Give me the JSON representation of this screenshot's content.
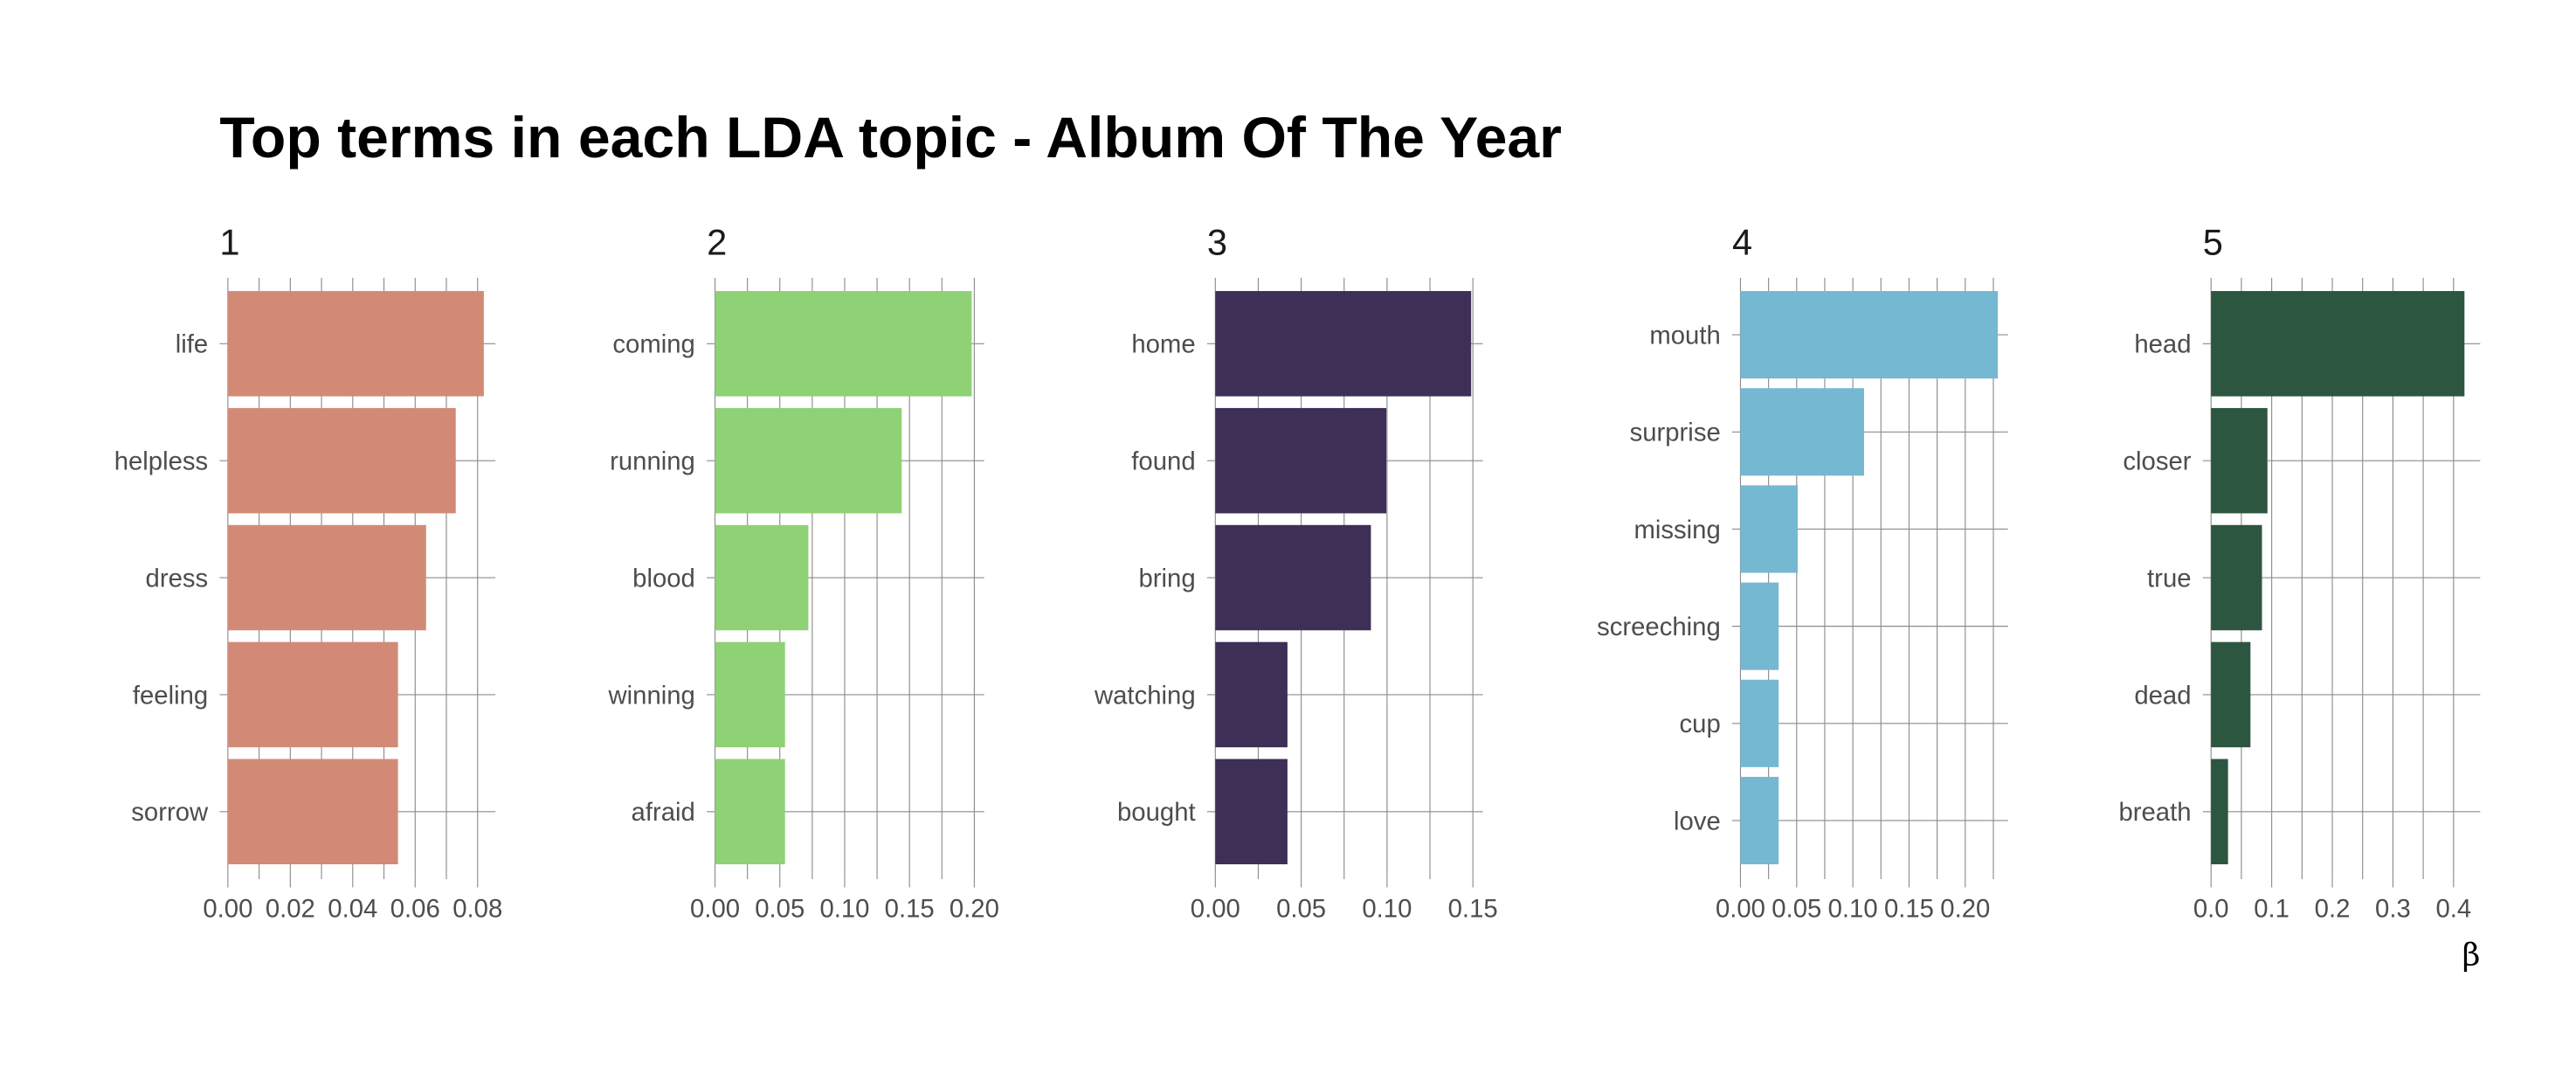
{
  "chart_data": {
    "type": "bar",
    "orientation": "horizontal",
    "title": "Top terms in each LDA topic - Album Of The Year",
    "xlabel": "β",
    "ylabel": "",
    "grid": true,
    "legend": "none",
    "facets": [
      {
        "label": "1",
        "color": "#D28A77",
        "categories": [
          "life",
          "helpless",
          "dress",
          "feeling",
          "sorrow"
        ],
        "values": [
          0.082,
          0.073,
          0.0635,
          0.0545,
          0.0545
        ],
        "xlim": [
          0,
          0.0857
        ],
        "ticks": [
          0,
          0.02,
          0.04,
          0.06,
          0.08
        ],
        "tick_labels": [
          "0.00",
          "0.02",
          "0.04",
          "0.06",
          "0.08"
        ]
      },
      {
        "label": "2",
        "color": "#8FD175",
        "categories": [
          "coming",
          "running",
          "blood",
          "winning",
          "afraid"
        ],
        "values": [
          0.198,
          0.144,
          0.072,
          0.054,
          0.054
        ],
        "xlim": [
          0,
          0.2076
        ],
        "ticks": [
          0,
          0.05,
          0.1,
          0.15,
          0.2
        ],
        "tick_labels": [
          "0.00",
          "0.05",
          "0.10",
          "0.15",
          "0.20"
        ]
      },
      {
        "label": "3",
        "color": "#3E2F56",
        "categories": [
          "home",
          "found",
          "bring",
          "watching",
          "bought"
        ],
        "values": [
          0.149,
          0.0996,
          0.0906,
          0.042,
          0.042
        ],
        "xlim": [
          0,
          0.1558
        ],
        "ticks": [
          0,
          0.05,
          0.1,
          0.15
        ],
        "tick_labels": [
          "0.00",
          "0.05",
          "0.10",
          "0.15"
        ]
      },
      {
        "label": "4",
        "color": "#75B8D1",
        "categories": [
          "mouth",
          "surprise",
          "missing",
          "screeching",
          "cup",
          "love"
        ],
        "values": [
          0.229,
          0.11,
          0.051,
          0.034,
          0.034,
          0.034
        ],
        "xlim": [
          0,
          0.238
        ],
        "ticks": [
          0,
          0.05,
          0.1,
          0.15,
          0.2
        ],
        "tick_labels": [
          "0.00",
          "0.05",
          "0.10",
          "0.15",
          "0.20"
        ]
      },
      {
        "label": "5",
        "color": "#2D5640",
        "categories": [
          "head",
          "closer",
          "true",
          "dead",
          "breath"
        ],
        "values": [
          0.418,
          0.093,
          0.084,
          0.065,
          0.028
        ],
        "xlim": [
          0,
          0.444
        ],
        "ticks": [
          0,
          0.1,
          0.2,
          0.3,
          0.4
        ],
        "tick_labels": [
          "0.0",
          "0.1",
          "0.2",
          "0.3",
          "0.4"
        ]
      }
    ]
  }
}
